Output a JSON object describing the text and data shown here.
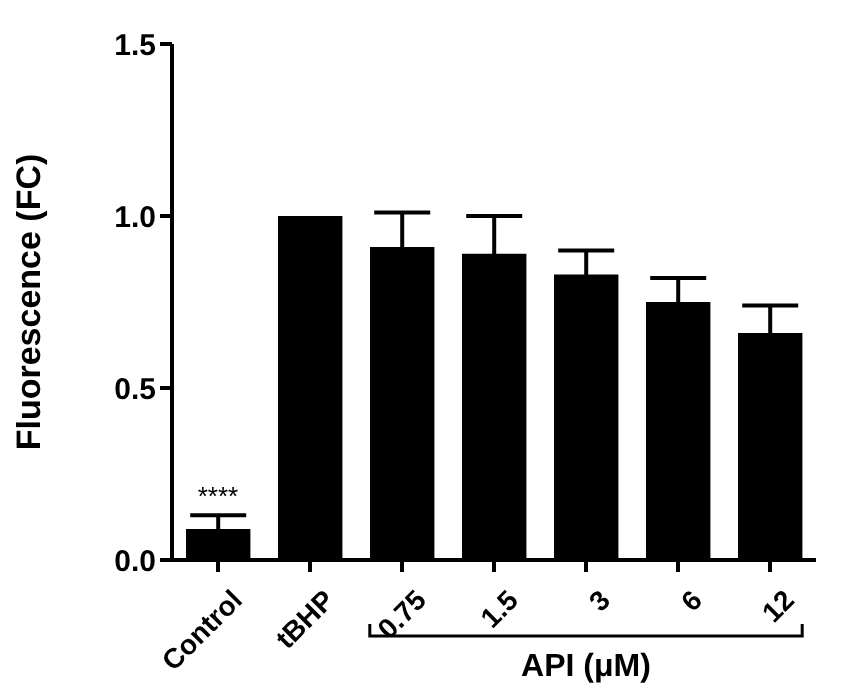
{
  "chart_data": {
    "type": "bar",
    "ylabel": "Fluorescence (FC)",
    "xlabel": "API (μM)",
    "categories": [
      "Control",
      "tBHP",
      "0.75",
      "1.5",
      "3",
      "6",
      "12"
    ],
    "values": [
      0.09,
      1.0,
      0.91,
      0.89,
      0.83,
      0.75,
      0.66
    ],
    "errors": [
      0.04,
      null,
      0.1,
      0.11,
      0.07,
      0.07,
      0.08
    ],
    "color": "#000000",
    "ylim": [
      0,
      1.5
    ],
    "yticks": [
      {
        "value": 0,
        "label": "0.0"
      },
      {
        "value": 0.5,
        "label": "0.5"
      },
      {
        "value": 1,
        "label": "1.0"
      },
      {
        "value": 1.5,
        "label": "1.5"
      }
    ],
    "annotations": [
      {
        "text": "****",
        "x": "Control",
        "y": 0.13
      }
    ],
    "grid": false,
    "legend": false
  }
}
